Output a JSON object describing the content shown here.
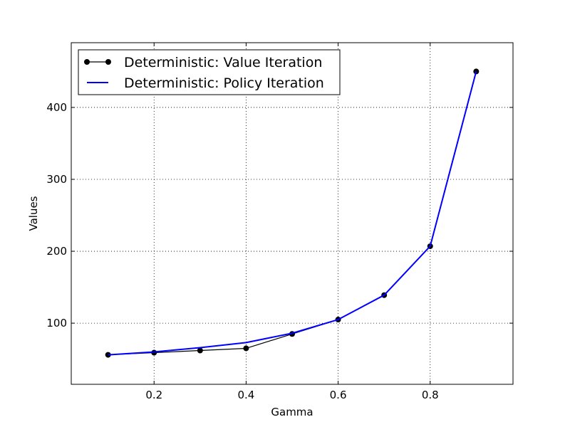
{
  "chart_data": {
    "type": "line",
    "title": "",
    "xlabel": "Gamma",
    "ylabel": "Values",
    "xlim": [
      0.02,
      0.98
    ],
    "ylim": [
      15,
      490
    ],
    "x_ticks": [
      0.2,
      0.4,
      0.6,
      0.8
    ],
    "x_tick_labels": [
      "0.2",
      "0.4",
      "0.6",
      "0.8"
    ],
    "y_ticks": [
      100,
      200,
      300,
      400
    ],
    "y_tick_labels": [
      "100",
      "200",
      "300",
      "400"
    ],
    "grid": true,
    "legend_position": "top-left",
    "x": [
      0.1,
      0.2,
      0.3,
      0.4,
      0.5,
      0.6,
      0.7,
      0.8,
      0.9
    ],
    "series": [
      {
        "name": "Deterministic: Value Iteration",
        "color": "#000000",
        "marker": "circle",
        "values": [
          56,
          59,
          62,
          65,
          85,
          105,
          139,
          207,
          450
        ]
      },
      {
        "name": "Deterministic: Policy Iteration",
        "color": "#0000ff",
        "marker": "none",
        "values": [
          56,
          60,
          66,
          73,
          86,
          105,
          139,
          207,
          450
        ]
      }
    ]
  }
}
